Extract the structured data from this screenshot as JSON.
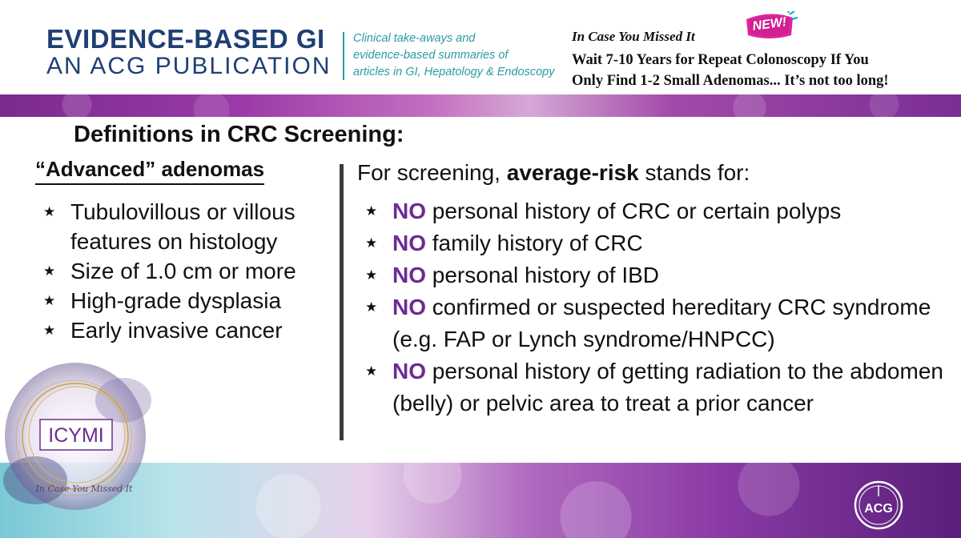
{
  "header": {
    "brand_line1": "EVIDENCE-BASED GI",
    "brand_line2": "AN ACG PUBLICATION",
    "tagline": [
      "Clinical take-aways and",
      "evidence-based summaries of",
      "articles in GI, Hepatology & Endoscopy"
    ],
    "icymi_title": "In Case You Missed It",
    "new_badge": "NEW!",
    "headline": [
      "Wait 7-10 Years for Repeat Colonoscopy If You",
      "Only Find 1-2 Small Adenomas... It’s not too long!"
    ]
  },
  "content": {
    "section_title": "Definitions in CRC Screening:",
    "left": {
      "heading": "“Advanced” adenomas",
      "items": [
        "Tubulovillous or villous features on histology",
        "Size of 1.0 cm or more",
        "High-grade dysplasia",
        "Early invasive cancer"
      ]
    },
    "right": {
      "heading_prefix": "For screening,",
      "heading_bold": "average-risk",
      "heading_suffix": "stands for:",
      "no_word": "NO",
      "items": [
        "personal history of CRC or certain polyps",
        "family history of CRC",
        "personal history of IBD",
        "confirmed or suspected hereditary CRC syndrome (e.g. FAP or Lynch syndrome/HNPCC)",
        "personal history of getting radiation to the abdomen (belly) or pelvic area to treat a prior cancer"
      ]
    }
  },
  "logos": {
    "icymi_text": "ICYMI",
    "icymi_script": "In Case You Missed It",
    "acg_text": "ACG"
  },
  "icons": {
    "bullet": "star-icon"
  },
  "colors": {
    "brand_navy": "#1f3f74",
    "tagline_teal": "#2a9ba3",
    "no_purple": "#6b2c91",
    "badge_pink": "#e0249a"
  }
}
